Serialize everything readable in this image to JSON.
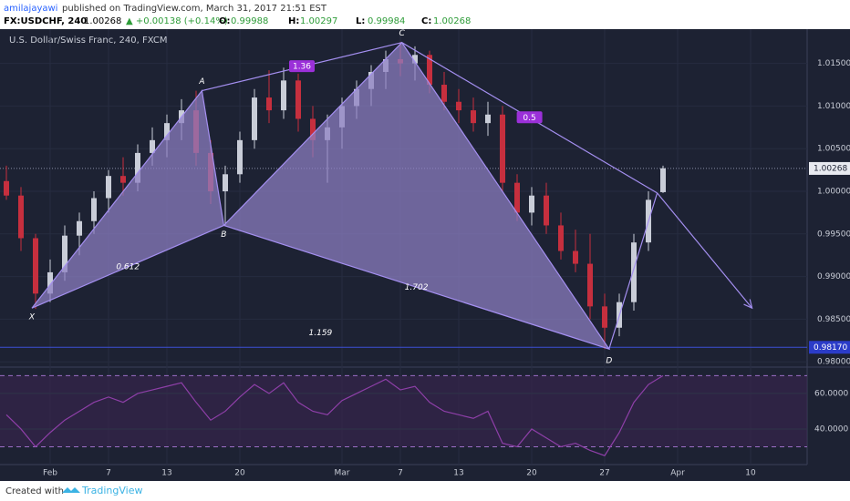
{
  "header": {
    "author": "amilajayawi",
    "published": "published on TradingView.com, March 31, 2017 21:51 EST",
    "symbol": "FX:USDCHF, 240",
    "price": "1.00268",
    "change": "▲ +0.00138 (+0.14%)",
    "ohlc": [
      {
        "label": "O:",
        "value": "0.99988"
      },
      {
        "label": "H:",
        "value": "1.00297"
      },
      {
        "label": "L:",
        "value": "0.99984"
      },
      {
        "label": "C:",
        "value": "1.00268"
      }
    ]
  },
  "chart_data": {
    "type": "candlestick",
    "title": "U.S. Dollar/Swiss Franc, 240, FXCM",
    "categories": [
      null,
      null,
      null,
      "Feb",
      null,
      null,
      null,
      "7",
      null,
      null,
      null,
      "13",
      null,
      null,
      null,
      null,
      "20",
      null,
      null,
      null,
      null,
      null,
      null,
      "Mar",
      null,
      null,
      null,
      "7",
      null,
      null,
      null,
      "13",
      null,
      null,
      null,
      null,
      "20",
      null,
      null,
      null,
      null,
      "27",
      null,
      null,
      null,
      null,
      "Apr",
      null,
      null,
      null,
      null,
      "10",
      null,
      null,
      null
    ],
    "open": [
      1.0012,
      0.9995,
      0.9945,
      0.988,
      0.9905,
      0.9948,
      0.9965,
      0.9992,
      1.0018,
      1.001,
      1.0045,
      1.006,
      1.008,
      1.0095,
      1.0045,
      1.0,
      1.002,
      1.006,
      1.011,
      1.0095,
      1.013,
      1.0085,
      1.006,
      1.0075,
      1.01,
      1.012,
      1.014,
      1.0155,
      1.015,
      1.016,
      1.0125,
      1.0105,
      1.0095,
      1.008,
      1.009,
      1.001,
      0.9975,
      0.9995,
      0.996,
      0.993,
      0.9915,
      0.9865,
      0.984,
      0.987,
      0.994,
      0.9999,
      null,
      null,
      null,
      null,
      null,
      null,
      null,
      null,
      null
    ],
    "high": [
      1.003,
      1.0005,
      0.995,
      0.992,
      0.996,
      0.9975,
      1.0,
      1.0025,
      1.004,
      1.0055,
      1.0075,
      1.009,
      1.0108,
      1.0118,
      1.006,
      1.003,
      1.007,
      1.012,
      1.0142,
      1.0145,
      1.0138,
      1.01,
      1.009,
      1.011,
      1.013,
      1.0148,
      1.0165,
      1.0175,
      1.017,
      1.0165,
      1.014,
      1.012,
      1.011,
      1.0105,
      1.01,
      1.002,
      1.0005,
      1.001,
      0.9975,
      0.9955,
      0.995,
      0.988,
      0.988,
      0.995,
      1.0,
      1.003,
      null,
      null,
      null,
      null,
      null,
      null,
      null,
      null,
      null
    ],
    "low": [
      0.999,
      0.993,
      0.9862,
      0.987,
      0.9895,
      0.9925,
      0.995,
      0.9975,
      0.9995,
      1.0,
      1.003,
      1.004,
      1.006,
      1.003,
      0.9985,
      0.996,
      1.001,
      1.005,
      1.008,
      1.0085,
      1.007,
      1.004,
      1.001,
      1.005,
      1.0085,
      1.01,
      1.012,
      1.0135,
      1.013,
      1.0115,
      1.0095,
      1.008,
      1.007,
      1.0065,
      1.0,
      0.9965,
      0.996,
      0.995,
      0.992,
      0.9905,
      0.985,
      0.9815,
      0.983,
      0.986,
      0.993,
      0.9998,
      null,
      null,
      null,
      null,
      null,
      null,
      null,
      null,
      null
    ],
    "close": [
      0.9995,
      0.9945,
      0.988,
      0.9905,
      0.9948,
      0.9965,
      0.9992,
      1.0018,
      1.001,
      1.0045,
      1.006,
      1.008,
      1.0095,
      1.0045,
      1.0,
      1.002,
      1.006,
      1.011,
      1.0095,
      1.013,
      1.0085,
      1.006,
      1.0075,
      1.01,
      1.012,
      1.014,
      1.0155,
      1.015,
      1.016,
      1.0125,
      1.0105,
      1.0095,
      1.008,
      1.009,
      1.001,
      0.9975,
      0.9995,
      0.996,
      0.993,
      0.9915,
      0.9865,
      0.984,
      0.987,
      0.994,
      0.999,
      1.0027,
      null,
      null,
      null,
      null,
      null,
      null,
      null,
      null,
      null
    ],
    "up_color": "#c9cdd8",
    "down_color": "#c62f3e",
    "ylim": [
      0.9797,
      1.0187
    ],
    "yticks": [
      {
        "value": 0.98,
        "label": "0.98000"
      },
      {
        "value": 0.985,
        "label": "0.98500"
      },
      {
        "value": 0.99,
        "label": "0.99000"
      },
      {
        "value": 0.995,
        "label": "0.99500"
      },
      {
        "value": 1.0,
        "label": "1.00000"
      },
      {
        "value": 1.005,
        "label": "1.00500"
      },
      {
        "value": 1.01,
        "label": "1.01000"
      },
      {
        "value": 1.015,
        "label": "1.01500"
      }
    ],
    "last_price": {
      "value": 1.00268,
      "label": "1.00268"
    },
    "level": {
      "value": 0.9817,
      "label": "0.98170"
    },
    "pattern": {
      "color": "#8d7fc4",
      "points": [
        {
          "label": "X",
          "x": 1.75,
          "y": 0.9863
        },
        {
          "label": "A",
          "x": 13.4,
          "y": 1.0118
        },
        {
          "label": "B",
          "x": 14.9,
          "y": 0.996
        },
        {
          "label": "C",
          "x": 27.1,
          "y": 1.01745
        },
        {
          "label": "D",
          "x": 41.3,
          "y": 0.9815
        }
      ],
      "projection": [
        {
          "x": 44.6,
          "y": 0.9998
        },
        {
          "x": 51.1,
          "y": 0.9863
        }
      ],
      "ratios": [
        "0.612",
        "1.36",
        "1.702",
        "1.159",
        "0.5"
      ]
    },
    "rsi": {
      "color": "#8e3fa8",
      "values": [
        48,
        40,
        30,
        38,
        45,
        50,
        55,
        58,
        55,
        60,
        62,
        64,
        66,
        55,
        45,
        50,
        58,
        65,
        60,
        66,
        55,
        50,
        48,
        56,
        60,
        64,
        68,
        62,
        64,
        55,
        50,
        48,
        46,
        50,
        32,
        30,
        40,
        35,
        30,
        32,
        28,
        25,
        38,
        55,
        65,
        70,
        null,
        null,
        null,
        null,
        null,
        null,
        null,
        null,
        null
      ],
      "ylim": [
        20,
        73.8
      ],
      "yticks": [
        {
          "value": 40,
          "label": "40.0000"
        },
        {
          "value": 60,
          "label": "60.0000"
        }
      ],
      "bands": [
        30,
        70
      ]
    }
  },
  "footer": {
    "text": "Created with",
    "brand": "TradingView"
  }
}
